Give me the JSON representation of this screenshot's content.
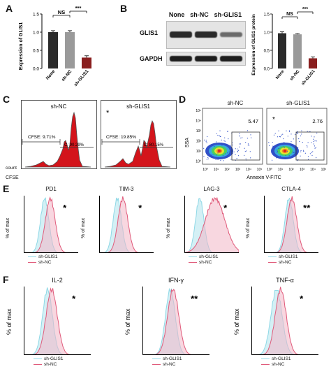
{
  "panels": {
    "A": {
      "letter": "A",
      "ylabel": "Expression of GLIS1",
      "categories": [
        "None",
        "sh-NC",
        "sh-GLIS1"
      ],
      "values": [
        1.0,
        1.0,
        0.3
      ],
      "errors": [
        0.04,
        0.04,
        0.05
      ],
      "bar_colors": [
        "#2b2b2b",
        "#9a9a9a",
        "#8a1f1f"
      ],
      "yticks": [
        "0.0",
        "0.5",
        "1.0",
        "1.5"
      ],
      "ylim": [
        0,
        1.5
      ],
      "sig": [
        "NS",
        "***"
      ]
    },
    "B": {
      "letter": "B",
      "blot_headers": [
        "None",
        "sh-NC",
        "sh-GLIS1"
      ],
      "blot_rows": [
        "GLIS1",
        "GAPDH"
      ],
      "ylabel": "Expression of GLIS1 protein",
      "categories": [
        "None",
        "sh-NC",
        "sh-GLIS1"
      ],
      "values": [
        0.97,
        0.94,
        0.28
      ],
      "errors": [
        0.04,
        0.02,
        0.04
      ],
      "yticks": [
        "0.0",
        "0.5",
        "1.0",
        "1.5"
      ],
      "ylim": [
        0,
        1.5
      ],
      "sig": [
        "NS",
        "***"
      ]
    },
    "C": {
      "letter": "C",
      "titles": [
        "sh-NC",
        "sh-GLIS1"
      ],
      "cfse_labels": [
        "CFSE: 9.71%",
        "CFSE: 19.85%"
      ],
      "c_labels": [
        "C: 90.29%",
        "C: 80.15%"
      ],
      "star": "*",
      "ylabel": "count",
      "xlabel": "CFSE"
    },
    "D": {
      "letter": "D",
      "titles": [
        "sh-NC",
        "sh-GLIS1"
      ],
      "percents": [
        "5.47",
        "2.76"
      ],
      "star": "*",
      "ylabel": "SSA",
      "xlabel": "Annexin V-FITC",
      "xticks": [
        "10⁰",
        "10¹",
        "10²",
        "10³",
        "10⁴",
        "10⁵"
      ],
      "yticks": [
        "10⁵",
        "10⁴",
        "10³",
        "10²",
        "10¹",
        "10⁰"
      ]
    },
    "E": {
      "letter": "E",
      "markers": [
        "PD1",
        "TIM-3",
        "LAG-3",
        "CTLA-4"
      ],
      "stars": [
        "*",
        "*",
        "*",
        "**"
      ],
      "ylabel": "% of max",
      "legend": [
        "sh-GLIS1",
        "sh-NC"
      ]
    },
    "F": {
      "letter": "F",
      "markers": [
        "IL-2",
        "IFN-γ",
        "TNF-α"
      ],
      "stars": [
        "*",
        "**",
        "*"
      ],
      "ylabel": "% of max",
      "legend": [
        "sh-GLIS1",
        "sh-NC"
      ]
    }
  },
  "colors": {
    "pink": "#e05a7a",
    "pink_fill": "#f3b7c6",
    "cyan": "#8fd8e6",
    "cyan_fill": "#c9ecf2",
    "red": "#d3141b",
    "gray_hist": "#777777"
  }
}
